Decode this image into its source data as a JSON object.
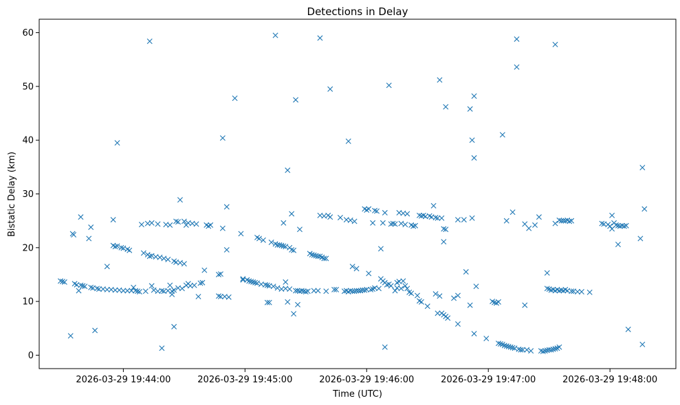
{
  "chart_data": {
    "type": "scatter",
    "title": "Detections in Delay",
    "xlabel": "Time (UTC)",
    "ylabel": "Bistatic Delay (km)",
    "marker": "x",
    "color": "#1f77b4",
    "grid": false,
    "x_unit": "seconds",
    "xlim": [
      -41.5,
      272.5
    ],
    "ylim": [
      -2.5,
      62.5
    ],
    "x_ticks": [
      {
        "value": 0,
        "label": "2026-03-29 19:44:00"
      },
      {
        "value": 60,
        "label": "2026-03-29 19:45:00"
      },
      {
        "value": 120,
        "label": "2026-03-29 19:46:00"
      },
      {
        "value": 180,
        "label": "2026-03-29 19:47:00"
      },
      {
        "value": 240,
        "label": "2026-03-29 19:48:00"
      }
    ],
    "y_ticks": [
      {
        "value": 0,
        "label": "0"
      },
      {
        "value": 10,
        "label": "10"
      },
      {
        "value": 20,
        "label": "20"
      },
      {
        "value": 30,
        "label": "30"
      },
      {
        "value": 40,
        "label": "40"
      },
      {
        "value": 50,
        "label": "50"
      },
      {
        "value": 60,
        "label": "60"
      }
    ],
    "points": [
      [
        -31,
        13.8
      ],
      [
        -30,
        13.7
      ],
      [
        -29,
        13.6
      ],
      [
        -26,
        3.6
      ],
      [
        -25,
        22.6
      ],
      [
        -24.5,
        22.4
      ],
      [
        -24,
        13.3
      ],
      [
        -23,
        13.1
      ],
      [
        -22,
        12.0
      ],
      [
        -21,
        25.7
      ],
      [
        -21,
        13.0
      ],
      [
        -20,
        12.9
      ],
      [
        -19,
        12.8
      ],
      [
        -17,
        21.7
      ],
      [
        -16,
        23.8
      ],
      [
        -16,
        12.6
      ],
      [
        -15,
        12.5
      ],
      [
        -14,
        4.6
      ],
      [
        -13,
        12.4
      ],
      [
        -12,
        12.3
      ],
      [
        -10,
        12.3
      ],
      [
        -8,
        16.5
      ],
      [
        -8,
        12.2
      ],
      [
        -6,
        12.2
      ],
      [
        -5,
        25.2
      ],
      [
        -5,
        20.4
      ],
      [
        -4,
        20.2
      ],
      [
        -4,
        12.1
      ],
      [
        -3,
        39.5
      ],
      [
        -3,
        20.3
      ],
      [
        -2,
        12.1
      ],
      [
        -1,
        20.0
      ],
      [
        0,
        19.9
      ],
      [
        0,
        12.0
      ],
      [
        2,
        19.7
      ],
      [
        2,
        12.0
      ],
      [
        3,
        19.5
      ],
      [
        4,
        12.0
      ],
      [
        5,
        12.6
      ],
      [
        6,
        12.0
      ],
      [
        7,
        11.9
      ],
      [
        8,
        11.8
      ],
      [
        9,
        24.3
      ],
      [
        10,
        19.0
      ],
      [
        11,
        11.9
      ],
      [
        12,
        24.5
      ],
      [
        12,
        18.7
      ],
      [
        13,
        58.4
      ],
      [
        13,
        18.4
      ],
      [
        14,
        24.6
      ],
      [
        14,
        18.5
      ],
      [
        14,
        12.9
      ],
      [
        15,
        12.1
      ],
      [
        16,
        18.3
      ],
      [
        17,
        24.4
      ],
      [
        17,
        11.9
      ],
      [
        18,
        18.2
      ],
      [
        19,
        1.3
      ],
      [
        19,
        12.0
      ],
      [
        20,
        18.0
      ],
      [
        20,
        11.9
      ],
      [
        21,
        24.3
      ],
      [
        22,
        17.8
      ],
      [
        22,
        12.0
      ],
      [
        23,
        24.2
      ],
      [
        23,
        13.0
      ],
      [
        24,
        11.9
      ],
      [
        24,
        11.3
      ],
      [
        25,
        17.5
      ],
      [
        25,
        12.1
      ],
      [
        25,
        5.3
      ],
      [
        26,
        24.9
      ],
      [
        26,
        17.3
      ],
      [
        27,
        24.8
      ],
      [
        27,
        12.5
      ],
      [
        28,
        28.9
      ],
      [
        28,
        17.2
      ],
      [
        29,
        12.4
      ],
      [
        30,
        24.9
      ],
      [
        30,
        17.0
      ],
      [
        31,
        24.2
      ],
      [
        31,
        13.0
      ],
      [
        32,
        24.6
      ],
      [
        32,
        13.3
      ],
      [
        33,
        12.9
      ],
      [
        34,
        24.5
      ],
      [
        35,
        13.0
      ],
      [
        36,
        24.4
      ],
      [
        37,
        10.9
      ],
      [
        38,
        13.4
      ],
      [
        39,
        13.5
      ],
      [
        40,
        15.8
      ],
      [
        41,
        24.2
      ],
      [
        42,
        24.0
      ],
      [
        43,
        24.2
      ],
      [
        47,
        15.0
      ],
      [
        47,
        11.0
      ],
      [
        48,
        15.1
      ],
      [
        48,
        10.9
      ],
      [
        49,
        40.4
      ],
      [
        49,
        23.6
      ],
      [
        50,
        10.9
      ],
      [
        51,
        27.6
      ],
      [
        51,
        19.6
      ],
      [
        52,
        10.8
      ],
      [
        55,
        47.8
      ],
      [
        58,
        22.6
      ],
      [
        59,
        14.2
      ],
      [
        59,
        14.0
      ],
      [
        61,
        14.0
      ],
      [
        62,
        13.8
      ],
      [
        63,
        13.7
      ],
      [
        64,
        13.6
      ],
      [
        65,
        13.5
      ],
      [
        66,
        21.9
      ],
      [
        66,
        13.4
      ],
      [
        67,
        21.7
      ],
      [
        68,
        13.2
      ],
      [
        69,
        21.4
      ],
      [
        70,
        13.1
      ],
      [
        71,
        9.8
      ],
      [
        71,
        13.0
      ],
      [
        72,
        9.8
      ],
      [
        72,
        12.9
      ],
      [
        73,
        21.0
      ],
      [
        74,
        12.8
      ],
      [
        75,
        20.7
      ],
      [
        75,
        59.5
      ],
      [
        76,
        20.5
      ],
      [
        76,
        12.5
      ],
      [
        77,
        20.5
      ],
      [
        78,
        20.4
      ],
      [
        78,
        12.3
      ],
      [
        79,
        20.3
      ],
      [
        79,
        24.6
      ],
      [
        80,
        13.6
      ],
      [
        80,
        12.4
      ],
      [
        80,
        20.2
      ],
      [
        81,
        34.4
      ],
      [
        81,
        9.9
      ],
      [
        82,
        12.3
      ],
      [
        82,
        20.0
      ],
      [
        83,
        19.6
      ],
      [
        83,
        26.3
      ],
      [
        84,
        7.7
      ],
      [
        84,
        19.5
      ],
      [
        85,
        12.0
      ],
      [
        85,
        47.5
      ],
      [
        86,
        9.4
      ],
      [
        86,
        12.0
      ],
      [
        87,
        23.4
      ],
      [
        87,
        11.9
      ],
      [
        88,
        12.0
      ],
      [
        89,
        11.9
      ],
      [
        90,
        11.8
      ],
      [
        91,
        11.9
      ],
      [
        92,
        18.9
      ],
      [
        93,
        18.7
      ],
      [
        94,
        12.0
      ],
      [
        94,
        18.6
      ],
      [
        95,
        18.5
      ],
      [
        96,
        18.4
      ],
      [
        96,
        12.0
      ],
      [
        97,
        59.0
      ],
      [
        97,
        26.0
      ],
      [
        97,
        18.4
      ],
      [
        98,
        18.2
      ],
      [
        99,
        25.9
      ],
      [
        99,
        18.0
      ],
      [
        100,
        18.0
      ],
      [
        100,
        11.9
      ],
      [
        101,
        26.0
      ],
      [
        102,
        49.5
      ],
      [
        102,
        25.7
      ],
      [
        104,
        12.2
      ],
      [
        105,
        12.2
      ],
      [
        107,
        25.6
      ],
      [
        109,
        11.9
      ],
      [
        110,
        25.2
      ],
      [
        110,
        12.0
      ],
      [
        111,
        39.8
      ],
      [
        111,
        11.8
      ],
      [
        112,
        25.1
      ],
      [
        112,
        12.0
      ],
      [
        113,
        16.5
      ],
      [
        113,
        11.9
      ],
      [
        114,
        24.9
      ],
      [
        114,
        11.9
      ],
      [
        115,
        16.1
      ],
      [
        115,
        12.0
      ],
      [
        116,
        12.0
      ],
      [
        117,
        12.0
      ],
      [
        118,
        12.1
      ],
      [
        119,
        27.2
      ],
      [
        119,
        12.1
      ],
      [
        120,
        27.0
      ],
      [
        120,
        12.2
      ],
      [
        121,
        27.2
      ],
      [
        121,
        15.2
      ],
      [
        122,
        12.2
      ],
      [
        123,
        24.6
      ],
      [
        123,
        12.3
      ],
      [
        124,
        26.9
      ],
      [
        124,
        12.5
      ],
      [
        125,
        26.8
      ],
      [
        126,
        12.4
      ],
      [
        127,
        19.8
      ],
      [
        127,
        14.2
      ],
      [
        128,
        13.8
      ],
      [
        128,
        24.6
      ],
      [
        129,
        26.5
      ],
      [
        129,
        1.5
      ],
      [
        129,
        13.5
      ],
      [
        130,
        13.1
      ],
      [
        131,
        50.2
      ],
      [
        131,
        13.2
      ],
      [
        132,
        24.4
      ],
      [
        132,
        12.9
      ],
      [
        133,
        24.5
      ],
      [
        134,
        24.4
      ],
      [
        134,
        12.0
      ],
      [
        135,
        13.5
      ],
      [
        135,
        12.5
      ],
      [
        136,
        26.5
      ],
      [
        136,
        13.7
      ],
      [
        137,
        24.5
      ],
      [
        137,
        12.4
      ],
      [
        138,
        26.4
      ],
      [
        138,
        13.8
      ],
      [
        139,
        24.3
      ],
      [
        139,
        12.9
      ],
      [
        140,
        26.3
      ],
      [
        140,
        12.4
      ],
      [
        141,
        11.7
      ],
      [
        142,
        24.2
      ],
      [
        142,
        11.5
      ],
      [
        143,
        24.0
      ],
      [
        144,
        24.1
      ],
      [
        145,
        11.1
      ],
      [
        146,
        26.0
      ],
      [
        146,
        10.1
      ],
      [
        147,
        25.9
      ],
      [
        147,
        9.9
      ],
      [
        148,
        26.0
      ],
      [
        149,
        25.8
      ],
      [
        150,
        9.1
      ],
      [
        151,
        25.9
      ],
      [
        152,
        25.7
      ],
      [
        153,
        27.8
      ],
      [
        154,
        25.6
      ],
      [
        154,
        11.4
      ],
      [
        155,
        25.5
      ],
      [
        155,
        7.8
      ],
      [
        156,
        51.2
      ],
      [
        156,
        11.0
      ],
      [
        157,
        25.5
      ],
      [
        157,
        7.8
      ],
      [
        158,
        23.5
      ],
      [
        158,
        21.1
      ],
      [
        158,
        7.5
      ],
      [
        159,
        46.2
      ],
      [
        159,
        23.4
      ],
      [
        159,
        7.2
      ],
      [
        160,
        6.9
      ],
      [
        163,
        10.6
      ],
      [
        165,
        25.2
      ],
      [
        165,
        11.1
      ],
      [
        165,
        5.8
      ],
      [
        168,
        25.2
      ],
      [
        169,
        15.5
      ],
      [
        171,
        45.8
      ],
      [
        171,
        9.3
      ],
      [
        172,
        25.5
      ],
      [
        172,
        40.0
      ],
      [
        173,
        48.2
      ],
      [
        173,
        36.7
      ],
      [
        173,
        4.0
      ],
      [
        174,
        12.8
      ],
      [
        179,
        3.1
      ],
      [
        182,
        10.0
      ],
      [
        183,
        9.8
      ],
      [
        184,
        9.7
      ],
      [
        185,
        9.9
      ],
      [
        185,
        2.2
      ],
      [
        186,
        2.1
      ],
      [
        187,
        41.0
      ],
      [
        187,
        2.0
      ],
      [
        188,
        1.8
      ],
      [
        189,
        25.0
      ],
      [
        189,
        1.7
      ],
      [
        190,
        1.6
      ],
      [
        191,
        1.5
      ],
      [
        192,
        26.6
      ],
      [
        192,
        1.4
      ],
      [
        193,
        1.3
      ],
      [
        194,
        58.8
      ],
      [
        194,
        53.6
      ],
      [
        195,
        1.1
      ],
      [
        196,
        1.0
      ],
      [
        197,
        1.0
      ],
      [
        198,
        24.4
      ],
      [
        198,
        9.3
      ],
      [
        199,
        1.0
      ],
      [
        200,
        23.6
      ],
      [
        201,
        0.8
      ],
      [
        203,
        24.2
      ],
      [
        205,
        25.7
      ],
      [
        206,
        0.8
      ],
      [
        207,
        0.7
      ],
      [
        208,
        0.8
      ],
      [
        209,
        15.3
      ],
      [
        209,
        12.4
      ],
      [
        209,
        0.9
      ],
      [
        210,
        12.3
      ],
      [
        210,
        1.0
      ],
      [
        211,
        12.1
      ],
      [
        211,
        1.0
      ],
      [
        212,
        12.2
      ],
      [
        212,
        1.1
      ],
      [
        213,
        57.8
      ],
      [
        213,
        24.5
      ],
      [
        213,
        12.0
      ],
      [
        213,
        1.2
      ],
      [
        214,
        12.2
      ],
      [
        214,
        1.3
      ],
      [
        215,
        25.1
      ],
      [
        215,
        12.0
      ],
      [
        215,
        1.5
      ],
      [
        216,
        25.0
      ],
      [
        216,
        12.1
      ],
      [
        217,
        25.0
      ],
      [
        217,
        12.0
      ],
      [
        218,
        25.0
      ],
      [
        218,
        12.2
      ],
      [
        219,
        25.1
      ],
      [
        219,
        12.0
      ],
      [
        220,
        24.9
      ],
      [
        221,
        25.0
      ],
      [
        221,
        11.9
      ],
      [
        222,
        11.9
      ],
      [
        224,
        11.8
      ],
      [
        226,
        11.8
      ],
      [
        230,
        11.7
      ],
      [
        236,
        24.5
      ],
      [
        237,
        24.4
      ],
      [
        239,
        24.3
      ],
      [
        240,
        24.0
      ],
      [
        241,
        23.5
      ],
      [
        241,
        26.0
      ],
      [
        242,
        24.6
      ],
      [
        243,
        24.2
      ],
      [
        244,
        24.1
      ],
      [
        244,
        20.6
      ],
      [
        245,
        24.0
      ],
      [
        246,
        24.1
      ],
      [
        247,
        24.0
      ],
      [
        248,
        24.1
      ],
      [
        249,
        4.8
      ],
      [
        255,
        21.7
      ],
      [
        256,
        34.9
      ],
      [
        256,
        2.0
      ],
      [
        257,
        27.2
      ]
    ]
  }
}
